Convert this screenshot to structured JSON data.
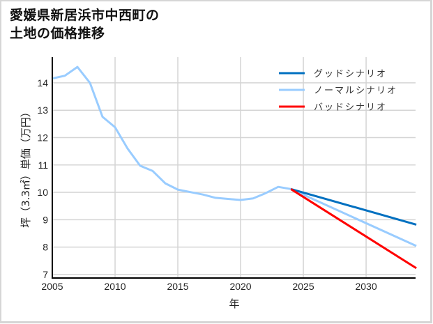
{
  "title": {
    "line1": "愛媛県新居浜市中西町の",
    "line2": "土地の価格推移"
  },
  "chart_data": {
    "type": "line",
    "title": "愛媛県新居浜市中西町の土地の価格推移",
    "xlabel": "年",
    "ylabel": "坪（3.3㎡）単価（万円）",
    "xlim": [
      2005,
      2033.94
    ],
    "ylim": [
      6.87,
      14.94
    ],
    "x_ticks": [
      2005,
      2010,
      2015,
      2020,
      2025,
      2030
    ],
    "y_ticks": [
      7,
      8,
      9,
      10,
      11,
      12,
      13,
      14
    ],
    "grid": true,
    "legend_position": "upper right",
    "series": [
      {
        "name": "ノーマルシナリオ（実績）",
        "color": "#99ccff",
        "x": [
          2005,
          2006,
          2007,
          2008,
          2009,
          2010,
          2011,
          2012,
          2013,
          2014,
          2015,
          2016,
          2017,
          2018,
          2019,
          2020,
          2021,
          2022,
          2023,
          2024
        ],
        "values": [
          14.16,
          14.26,
          14.58,
          14.0,
          12.76,
          12.38,
          11.6,
          10.97,
          10.78,
          10.33,
          10.1,
          10.01,
          9.92,
          9.8,
          9.76,
          9.72,
          9.78,
          9.97,
          10.2,
          10.12
        ]
      },
      {
        "name": "グッドシナリオ",
        "color": "#0070c0",
        "x": [
          2024,
          2034
        ],
        "values": [
          10.12,
          8.82
        ]
      },
      {
        "name": "ノーマルシナリオ",
        "color": "#99ccff",
        "x": [
          2024,
          2034
        ],
        "values": [
          10.12,
          8.04
        ]
      },
      {
        "name": "バッドシナリオ",
        "color": "#ff0000",
        "x": [
          2024,
          2034
        ],
        "values": [
          10.12,
          7.23
        ]
      }
    ]
  },
  "legend": [
    {
      "label": "グッドシナリオ",
      "color": "#0070c0"
    },
    {
      "label": "ノーマルシナリオ",
      "color": "#99ccff"
    },
    {
      "label": "バッドシナリオ",
      "color": "#ff0000"
    }
  ]
}
